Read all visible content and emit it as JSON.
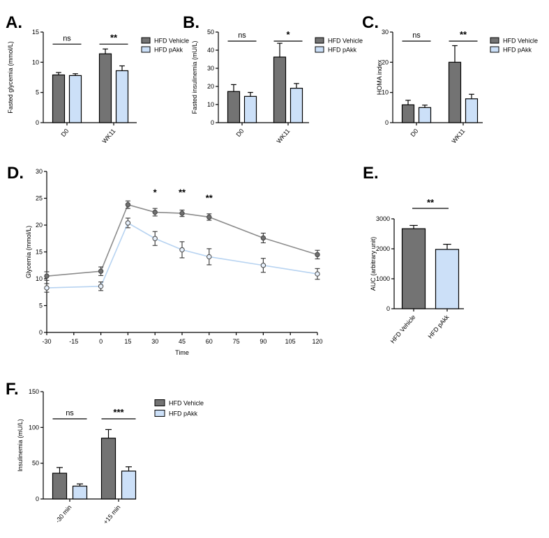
{
  "colors": {
    "vehicle": "#737373",
    "pakk": "#cce0f8",
    "vehicle_line": "#8c8c8c",
    "pakk_line": "#b7d3f1",
    "axis": "#000000"
  },
  "chart_data": [
    {
      "id": "A",
      "panel_label": "A.",
      "type": "bar",
      "categories": [
        "D0",
        "WK11"
      ],
      "series": [
        {
          "name": "HFD Vehicle",
          "color_key": "vehicle",
          "values": [
            7.9,
            11.4
          ],
          "errors": [
            0.4,
            0.8
          ]
        },
        {
          "name": "HFD pAkk",
          "color_key": "pakk",
          "values": [
            7.8,
            8.6
          ],
          "errors": [
            0.3,
            0.8
          ]
        }
      ],
      "xlabel": "",
      "ylabel": "Fasted glycemia (mmol/L)",
      "ylim": [
        0,
        15
      ],
      "yticks": [
        0,
        5,
        10,
        15
      ],
      "significance": [
        {
          "category_index": 0,
          "label": "ns",
          "bar_value": 13
        },
        {
          "category_index": 1,
          "label": "**",
          "bar_value": 13
        }
      ],
      "legend": {
        "position": "right"
      }
    },
    {
      "id": "B",
      "panel_label": "B.",
      "type": "bar",
      "categories": [
        "D0",
        "WK11"
      ],
      "series": [
        {
          "name": "HFD Vehicle",
          "color_key": "vehicle",
          "values": [
            17.2,
            36.2
          ],
          "errors": [
            3.8,
            7.6
          ]
        },
        {
          "name": "HFD pAkk",
          "color_key": "pakk",
          "values": [
            14.5,
            19.0
          ],
          "errors": [
            2.2,
            2.6
          ]
        }
      ],
      "xlabel": "",
      "ylabel": "Fasted insulinemia (mU/L)",
      "ylim": [
        0,
        50
      ],
      "yticks": [
        0,
        10,
        20,
        30,
        40,
        50
      ],
      "significance": [
        {
          "category_index": 0,
          "label": "ns",
          "bar_value": 45
        },
        {
          "category_index": 1,
          "label": "*",
          "bar_value": 45
        }
      ],
      "legend": {
        "position": "right"
      }
    },
    {
      "id": "C",
      "panel_label": "C.",
      "type": "bar",
      "categories": [
        "D0",
        "WK11"
      ],
      "series": [
        {
          "name": "HFD Vehicle",
          "color_key": "vehicle",
          "values": [
            5.9,
            20.0
          ],
          "errors": [
            1.5,
            5.5
          ]
        },
        {
          "name": "HFD pAkk",
          "color_key": "pakk",
          "values": [
            5.0,
            7.9
          ],
          "errors": [
            0.8,
            1.5
          ]
        }
      ],
      "xlabel": "",
      "ylabel": "HOMA index",
      "ylim": [
        0,
        30
      ],
      "yticks": [
        0,
        10,
        20,
        30
      ],
      "significance": [
        {
          "category_index": 0,
          "label": "ns",
          "bar_value": 27
        },
        {
          "category_index": 1,
          "label": "**",
          "bar_value": 27
        }
      ],
      "legend": {
        "position": "right"
      }
    },
    {
      "id": "D",
      "panel_label": "D.",
      "type": "line",
      "x": [
        -30,
        0,
        15,
        30,
        45,
        60,
        90,
        120
      ],
      "series": [
        {
          "name": "HFD Vehicle",
          "color_key": "vehicle_line",
          "values": [
            10.5,
            11.4,
            23.8,
            22.4,
            22.2,
            21.5,
            17.6,
            14.5
          ],
          "errors": [
            0.8,
            0.8,
            0.7,
            0.7,
            0.6,
            0.6,
            0.9,
            0.8
          ]
        },
        {
          "name": "HFD pAkk",
          "color_key": "pakk_line",
          "values": [
            8.3,
            8.6,
            20.4,
            17.5,
            15.4,
            14.1,
            12.5,
            10.9
          ],
          "errors": [
            0.8,
            0.8,
            0.9,
            1.3,
            1.5,
            1.5,
            1.3,
            1.0
          ]
        }
      ],
      "xlabel": "Time",
      "ylabel": "Glycemia (mmol/L)",
      "ylim": [
        0,
        30
      ],
      "yticks": [
        0,
        5,
        10,
        15,
        20,
        25,
        30
      ],
      "xlim": [
        -30,
        120
      ],
      "xticks": [
        -30,
        -15,
        0,
        15,
        30,
        45,
        60,
        75,
        90,
        105,
        120
      ],
      "significance": [
        {
          "x": 30,
          "label": "*",
          "value": 25.5
        },
        {
          "x": 45,
          "label": "**",
          "value": 25.5
        },
        {
          "x": 60,
          "label": "**",
          "value": 24.5
        }
      ]
    },
    {
      "id": "E",
      "panel_label": "E.",
      "type": "bar",
      "categories": [
        "HFD Vehicle",
        "HFD pAkk"
      ],
      "series": [
        {
          "name": "AUC",
          "values": [
            2670,
            1980
          ],
          "errors": [
            110,
            170
          ],
          "color_keys": [
            "vehicle",
            "pakk"
          ]
        }
      ],
      "xlabel": "",
      "ylabel": "AUC (arbitrary unit)",
      "ylim": [
        0,
        3000
      ],
      "yticks": [
        0,
        1000,
        2000,
        3000
      ],
      "significance": [
        {
          "label": "**",
          "bar_value": 3350
        }
      ]
    },
    {
      "id": "F",
      "panel_label": "F.",
      "type": "bar",
      "categories": [
        "-30 min",
        "+15 min"
      ],
      "series": [
        {
          "name": "HFD Vehicle",
          "color_key": "vehicle",
          "values": [
            36,
            85
          ],
          "errors": [
            8,
            12
          ]
        },
        {
          "name": "HFD pAkk",
          "color_key": "pakk",
          "values": [
            18,
            39
          ],
          "errors": [
            3,
            6
          ]
        }
      ],
      "xlabel": "",
      "ylabel": "Insulinemia (mU/L)",
      "ylim": [
        0,
        150
      ],
      "yticks": [
        0,
        50,
        100,
        150
      ],
      "significance": [
        {
          "category_index": 0,
          "label": "ns",
          "bar_value": 112
        },
        {
          "category_index": 1,
          "label": "***",
          "bar_value": 112
        }
      ],
      "legend": {
        "position": "right"
      }
    }
  ]
}
